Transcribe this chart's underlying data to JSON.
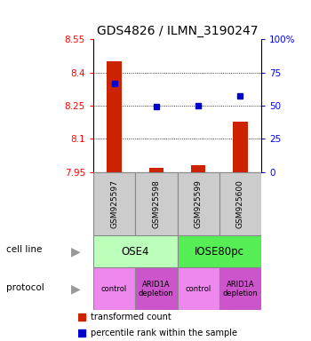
{
  "title": "GDS4826 / ILMN_3190247",
  "samples": [
    "GSM925597",
    "GSM925598",
    "GSM925599",
    "GSM925600"
  ],
  "bar_values": [
    8.45,
    7.97,
    7.98,
    8.18
  ],
  "bar_baseline": 7.95,
  "blue_y": [
    8.35,
    8.247,
    8.252,
    8.295
  ],
  "ylim": [
    7.95,
    8.55
  ],
  "yticks_left": [
    7.95,
    8.1,
    8.25,
    8.4,
    8.55
  ],
  "yticks_right_vals": [
    0,
    25,
    50,
    75,
    100
  ],
  "yticks_right_mapped": [
    7.95,
    8.1,
    8.25,
    8.4,
    8.55
  ],
  "bar_color": "#cc2200",
  "blue_color": "#0000cc",
  "cell_line_labels": [
    "OSE4",
    "IOSE80pc"
  ],
  "cell_line_spans": [
    [
      0,
      2
    ],
    [
      2,
      4
    ]
  ],
  "cell_line_colors": [
    "#bbffbb",
    "#55ee55"
  ],
  "protocol_labels": [
    "control",
    "ARID1A\ndepletion",
    "control",
    "ARID1A\ndepletion"
  ],
  "protocol_colors": [
    "#ee88ee",
    "#cc55cc",
    "#ee88ee",
    "#cc55cc"
  ],
  "legend_bar_label": "transformed count",
  "legend_blue_label": "percentile rank within the sample",
  "cell_line_row_label": "cell line",
  "protocol_row_label": "protocol",
  "title_fontsize": 10,
  "tick_fontsize": 7.5,
  "label_fontsize": 8,
  "bar_width": 0.35
}
